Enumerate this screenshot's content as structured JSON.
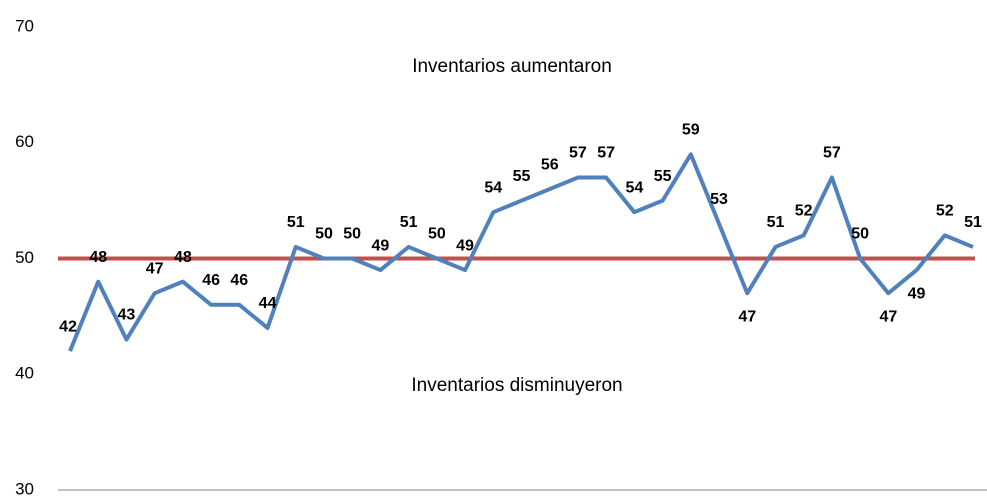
{
  "chart_data": {
    "type": "line",
    "annotations": [
      "Inventarios aumentaron",
      "Inventarios disminuyeron"
    ],
    "series": [
      {
        "color": "#4f81bd",
        "values": [
          42,
          48,
          43,
          47,
          48,
          46,
          46,
          44,
          51,
          50,
          50,
          49,
          51,
          50,
          49,
          54,
          55,
          56,
          57,
          57,
          54,
          55,
          59,
          53,
          47,
          51,
          52,
          57,
          50,
          47,
          49,
          52,
          51
        ]
      }
    ],
    "reference_line": {
      "value": 50,
      "color": "#c0504d"
    },
    "ylim": [
      30,
      70
    ],
    "yticks": [
      30,
      40,
      50,
      60,
      70
    ],
    "grid": false
  }
}
